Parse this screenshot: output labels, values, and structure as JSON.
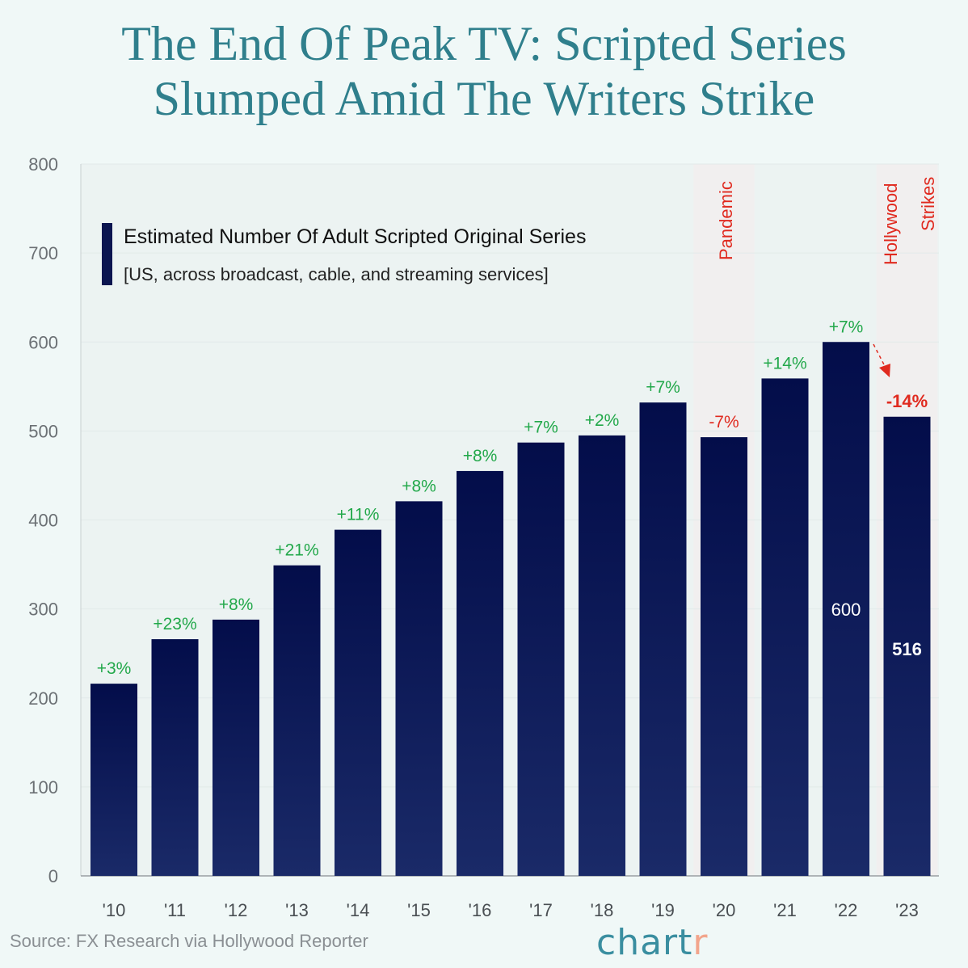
{
  "title_line1": "The End Of Peak TV: Scripted Series",
  "title_line2": "Slumped Amid The Writers Strike",
  "source": "Source: FX Research via Hollywood Reporter",
  "logo": {
    "main": "chart",
    "accent": "r"
  },
  "chart_data": {
    "type": "bar",
    "legend_title": "Estimated Number Of Adult Scripted Original Series",
    "legend_subtitle": "[US, across broadcast, cable, and streaming services]",
    "categories": [
      "'10",
      "'11",
      "'12",
      "'13",
      "'14",
      "'15",
      "'16",
      "'17",
      "'18",
      "'19",
      "'20",
      "'21",
      "'22",
      "'23"
    ],
    "values": [
      216,
      266,
      288,
      349,
      389,
      421,
      455,
      487,
      495,
      532,
      493,
      559,
      600,
      516
    ],
    "change_labels": [
      "+3%",
      "+23%",
      "+8%",
      "+21%",
      "+11%",
      "+8%",
      "+8%",
      "+7%",
      "+2%",
      "+7%",
      "-7%",
      "+14%",
      "+7%",
      "-14%"
    ],
    "value_labels": {
      "12": "600",
      "13": "516"
    },
    "annotations": [
      {
        "text": "Pandemic",
        "category": "'20"
      },
      {
        "text": "Hollywood",
        "category": "'23"
      },
      {
        "text": "Strikes",
        "category": "'23"
      }
    ],
    "yticks": [
      0,
      100,
      200,
      300,
      400,
      500,
      600,
      700,
      800
    ],
    "ylim": [
      0,
      800
    ],
    "grid": true,
    "legend_position": "top-left",
    "colors": {
      "bar": "#0b1550",
      "positive": "#22a84a",
      "negative": "#e02a1f",
      "title": "#2f7f8c"
    }
  }
}
